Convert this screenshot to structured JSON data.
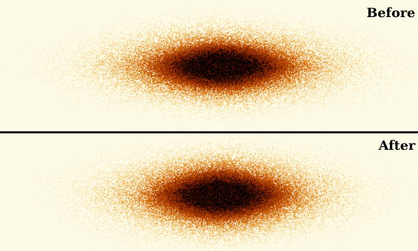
{
  "panels": {
    "before": {
      "label": "Before"
    },
    "after": {
      "label": "After"
    }
  },
  "colors": {
    "background": "#fdfbe6",
    "divider": "#000000",
    "colormap": [
      "#fdfbe6",
      "#f6c46a",
      "#e07d13",
      "#a83600",
      "#4a0c00",
      "#000000"
    ]
  }
}
